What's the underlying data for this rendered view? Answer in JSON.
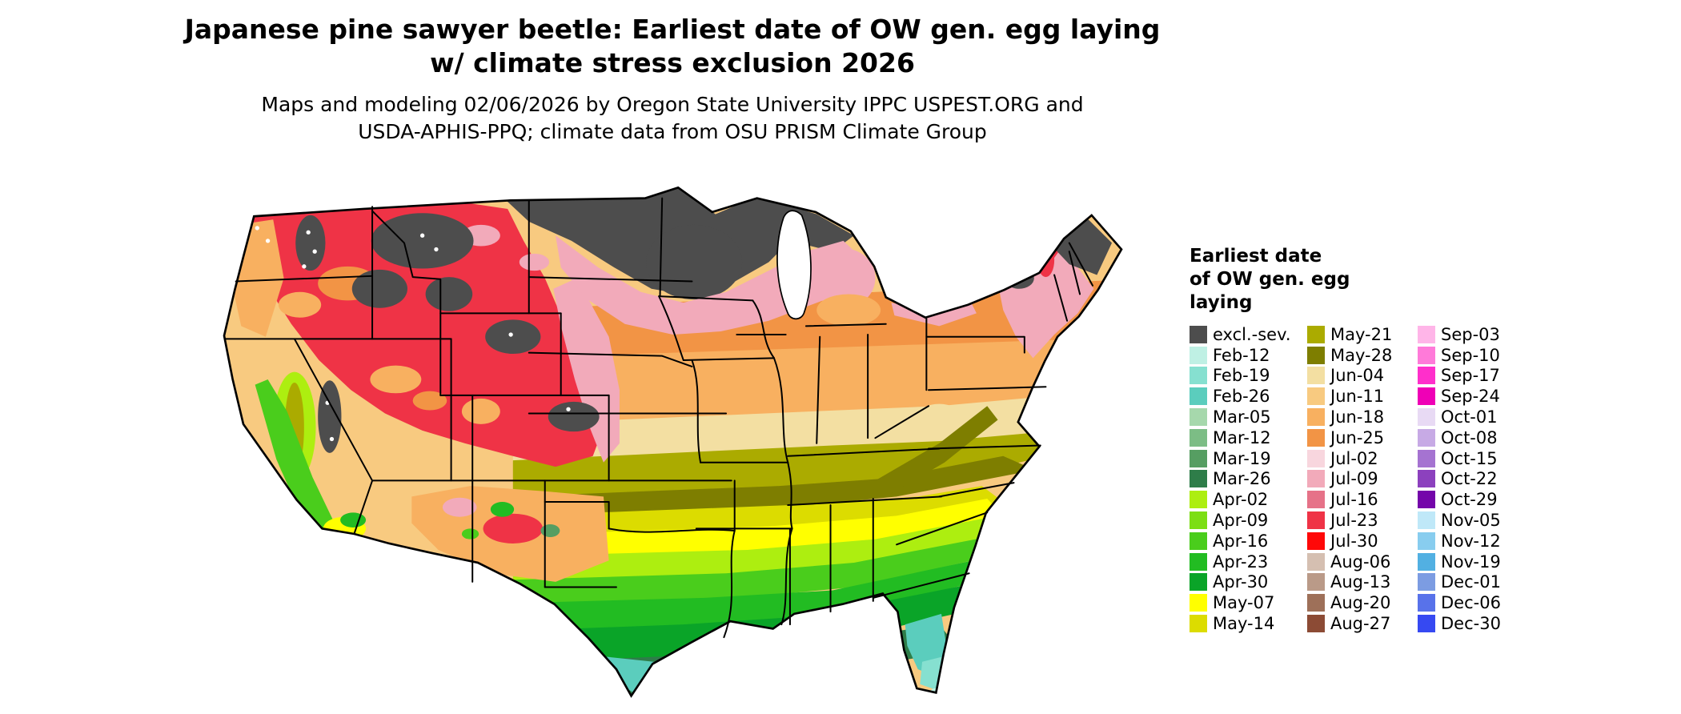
{
  "title": {
    "line1": "Japanese pine sawyer beetle: Earliest date of OW gen. egg laying",
    "line2": "w/ climate stress exclusion 2026"
  },
  "subtitle": {
    "line1": "Maps and modeling 02/06/2026 by Oregon State University IPPC USPEST.ORG and",
    "line2": "USDA-APHIS-PPQ; climate data from OSU PRISM Climate Group"
  },
  "legend": {
    "title_lines": [
      "Earliest date",
      "of OW gen. egg",
      "laying"
    ],
    "columns": [
      [
        {
          "label": "excl.-sev.",
          "color": "#4D4D4D"
        },
        {
          "label": "Feb-12",
          "color": "#BFF0E4"
        },
        {
          "label": "Feb-19",
          "color": "#86E0D0"
        },
        {
          "label": "Feb-26",
          "color": "#5BCDBD"
        },
        {
          "label": "Mar-05",
          "color": "#A6D8AC"
        },
        {
          "label": "Mar-12",
          "color": "#7CBD85"
        },
        {
          "label": "Mar-19",
          "color": "#569E62"
        },
        {
          "label": "Mar-26",
          "color": "#2E7D49"
        },
        {
          "label": "Apr-02",
          "color": "#ADEE10"
        },
        {
          "label": "Apr-09",
          "color": "#7CDE14"
        },
        {
          "label": "Apr-16",
          "color": "#4ACD1C"
        },
        {
          "label": "Apr-23",
          "color": "#22BC22"
        },
        {
          "label": "Apr-30",
          "color": "#0AA428"
        },
        {
          "label": "May-07",
          "color": "#FFFF00"
        },
        {
          "label": "May-14",
          "color": "#DCDC00"
        }
      ],
      [
        {
          "label": "May-21",
          "color": "#ABAB00"
        },
        {
          "label": "May-28",
          "color": "#7E7E00"
        },
        {
          "label": "Jun-04",
          "color": "#F3DFA2"
        },
        {
          "label": "Jun-11",
          "color": "#F8CA80"
        },
        {
          "label": "Jun-18",
          "color": "#F8B060"
        },
        {
          "label": "Jun-25",
          "color": "#F29445"
        },
        {
          "label": "Jul-02",
          "color": "#F8D6DE"
        },
        {
          "label": "Jul-09",
          "color": "#F2AABA"
        },
        {
          "label": "Jul-16",
          "color": "#E67288"
        },
        {
          "label": "Jul-23",
          "color": "#EF3346"
        },
        {
          "label": "Jul-30",
          "color": "#FF0808"
        },
        {
          "label": "Aug-06",
          "color": "#D5BFB1"
        },
        {
          "label": "Aug-13",
          "color": "#BA9A88"
        },
        {
          "label": "Aug-20",
          "color": "#9E7059"
        },
        {
          "label": "Aug-27",
          "color": "#8C4B35"
        }
      ],
      [
        {
          "label": "Sep-03",
          "color": "#FFB5E8"
        },
        {
          "label": "Sep-10",
          "color": "#FF7AD9"
        },
        {
          "label": "Sep-17",
          "color": "#FF2FCB"
        },
        {
          "label": "Sep-24",
          "color": "#EF00B6"
        },
        {
          "label": "Oct-01",
          "color": "#E8DAF4"
        },
        {
          "label": "Oct-08",
          "color": "#C7AAE5"
        },
        {
          "label": "Oct-15",
          "color": "#A573D1"
        },
        {
          "label": "Oct-22",
          "color": "#8C41BE"
        },
        {
          "label": "Oct-29",
          "color": "#7406AA"
        },
        {
          "label": "Nov-05",
          "color": "#BFE8F8"
        },
        {
          "label": "Nov-12",
          "color": "#88CDEF"
        },
        {
          "label": "Nov-19",
          "color": "#52B0E2"
        },
        {
          "label": "Dec-01",
          "color": "#7C9CE2"
        },
        {
          "label": "Dec-06",
          "color": "#5872EA"
        },
        {
          "label": "Dec-30",
          "color": "#3649F2"
        }
      ]
    ]
  }
}
